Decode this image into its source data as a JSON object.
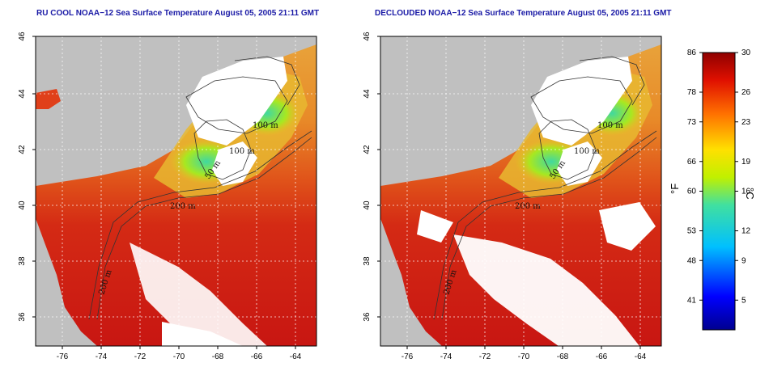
{
  "panels": [
    {
      "title": "RU COOL NOAA−12 Sea Surface Temperature August 05, 2005 21:11 GMT",
      "contour_labels": [
        "100 m",
        "100 m",
        "50 m",
        "200 m",
        "200 m"
      ]
    },
    {
      "title": "DECLOUDED NOAA−12 Sea Surface Temperature August 05, 2005 21:11 GMT",
      "contour_labels": [
        "100 m",
        "100 m",
        "50 m",
        "200 m",
        "200 m"
      ]
    }
  ],
  "axes": {
    "lon_ticks": [
      "-76",
      "-74",
      "-72",
      "-70",
      "-68",
      "-66",
      "-64"
    ],
    "lat_ticks": [
      "46",
      "44",
      "42",
      "40",
      "38",
      "36"
    ]
  },
  "colorbar": {
    "f_label": "°F",
    "c_label": "°C",
    "f_ticks": [
      "86",
      "78",
      "73",
      "66",
      "60",
      "53",
      "48",
      "41"
    ],
    "c_ticks": [
      "30",
      "26",
      "23",
      "19",
      "16",
      "12",
      "9",
      "5"
    ]
  },
  "colors": {
    "land": "#c0c0c0",
    "frame": "#000000",
    "title": "#1a1aa6"
  }
}
